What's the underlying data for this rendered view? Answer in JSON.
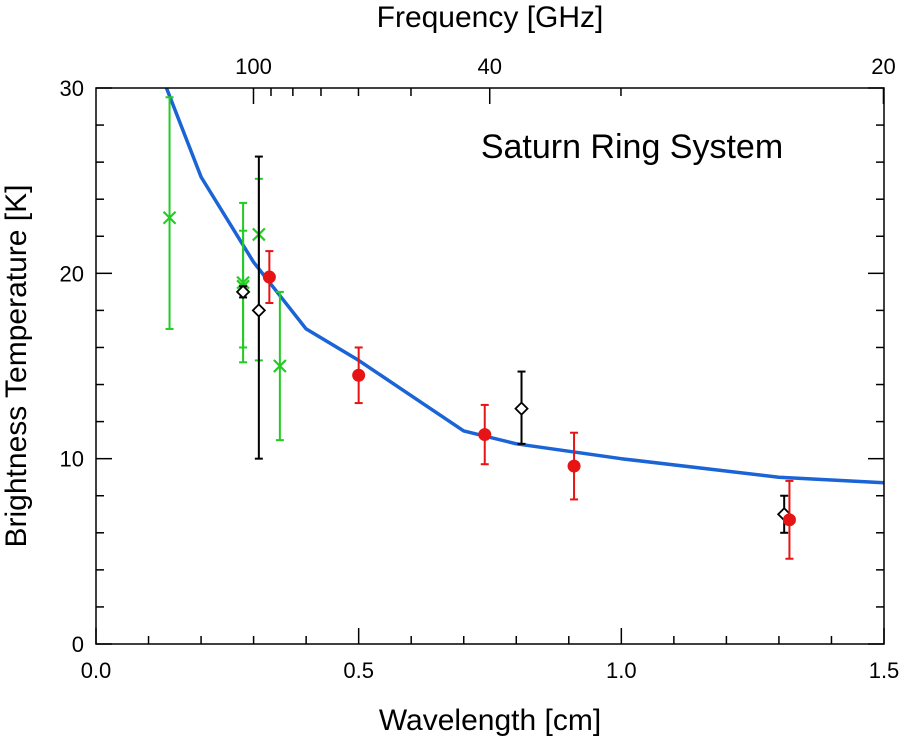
{
  "chart_data": {
    "type": "scatter",
    "annotation": "Saturn Ring System",
    "xlabel": "Wavelength [cm]",
    "ylabel": "Brightness Temperature [K]",
    "top_xlabel": "Frequency [GHz]",
    "xlim": [
      0.0,
      1.5
    ],
    "ylim": [
      0,
      30
    ],
    "grid": false,
    "x_ticks": [
      {
        "value": 0.0,
        "label": "0.0"
      },
      {
        "value": 0.5,
        "label": "0.5"
      },
      {
        "value": 1.0,
        "label": "1.0"
      },
      {
        "value": 1.5,
        "label": "1.5"
      }
    ],
    "y_ticks": [
      {
        "value": 0,
        "label": "0"
      },
      {
        "value": 10,
        "label": "10"
      },
      {
        "value": 20,
        "label": "20"
      },
      {
        "value": 30,
        "label": "30"
      }
    ],
    "top_ticks": [
      {
        "frequency": 100,
        "label": "100"
      },
      {
        "frequency": 40,
        "label": "40"
      },
      {
        "frequency": 20,
        "label": "20"
      }
    ],
    "series": [
      {
        "marker": "line",
        "color": "#1a64d6",
        "points": [
          {
            "x": 0.13,
            "y": 30.3
          },
          {
            "x": 0.2,
            "y": 25.2
          },
          {
            "x": 0.3,
            "y": 20.6
          },
          {
            "x": 0.4,
            "y": 17.0
          },
          {
            "x": 0.5,
            "y": 15.3
          },
          {
            "x": 0.6,
            "y": 13.4
          },
          {
            "x": 0.7,
            "y": 11.5
          },
          {
            "x": 0.8,
            "y": 10.8
          },
          {
            "x": 1.0,
            "y": 10.0
          },
          {
            "x": 1.3,
            "y": 9.0
          },
          {
            "x": 1.5,
            "y": 8.7
          }
        ]
      },
      {
        "marker": "x",
        "color": "#22cc22",
        "points": [
          {
            "x": 0.14,
            "y": 23.0,
            "err_low": 17.0,
            "err_high": 29.5
          },
          {
            "x": 0.28,
            "y": 19.3,
            "err_low": 16.0,
            "err_high": 22.3
          },
          {
            "x": 0.28,
            "y": 19.5,
            "err_low": 15.2,
            "err_high": 23.8
          },
          {
            "x": 0.31,
            "y": 22.1,
            "err_low": 15.3,
            "err_high": 25.1
          },
          {
            "x": 0.35,
            "y": 15.0,
            "err_low": 11.0,
            "err_high": 19.0
          }
        ]
      },
      {
        "marker": "diamond",
        "color": "#000000",
        "points": [
          {
            "x": 0.28,
            "y": 19.0,
            "err_low": 18.7,
            "err_high": 19.3
          },
          {
            "x": 0.31,
            "y": 18.0,
            "err_low": 10.0,
            "err_high": 26.3
          },
          {
            "x": 0.81,
            "y": 12.7,
            "err_low": 10.8,
            "err_high": 14.7
          },
          {
            "x": 1.31,
            "y": 7.0,
            "err_low": 6.0,
            "err_high": 8.0
          }
        ]
      },
      {
        "marker": "circle",
        "color": "#e61414",
        "points": [
          {
            "x": 0.33,
            "y": 19.8,
            "err_low": 18.4,
            "err_high": 21.2
          },
          {
            "x": 0.5,
            "y": 14.5,
            "err_low": 13.0,
            "err_high": 16.0
          },
          {
            "x": 0.74,
            "y": 11.3,
            "err_low": 9.7,
            "err_high": 12.9
          },
          {
            "x": 0.91,
            "y": 9.6,
            "err_low": 7.8,
            "err_high": 11.4
          },
          {
            "x": 1.32,
            "y": 6.7,
            "err_low": 4.6,
            "err_high": 8.8
          }
        ]
      }
    ]
  }
}
